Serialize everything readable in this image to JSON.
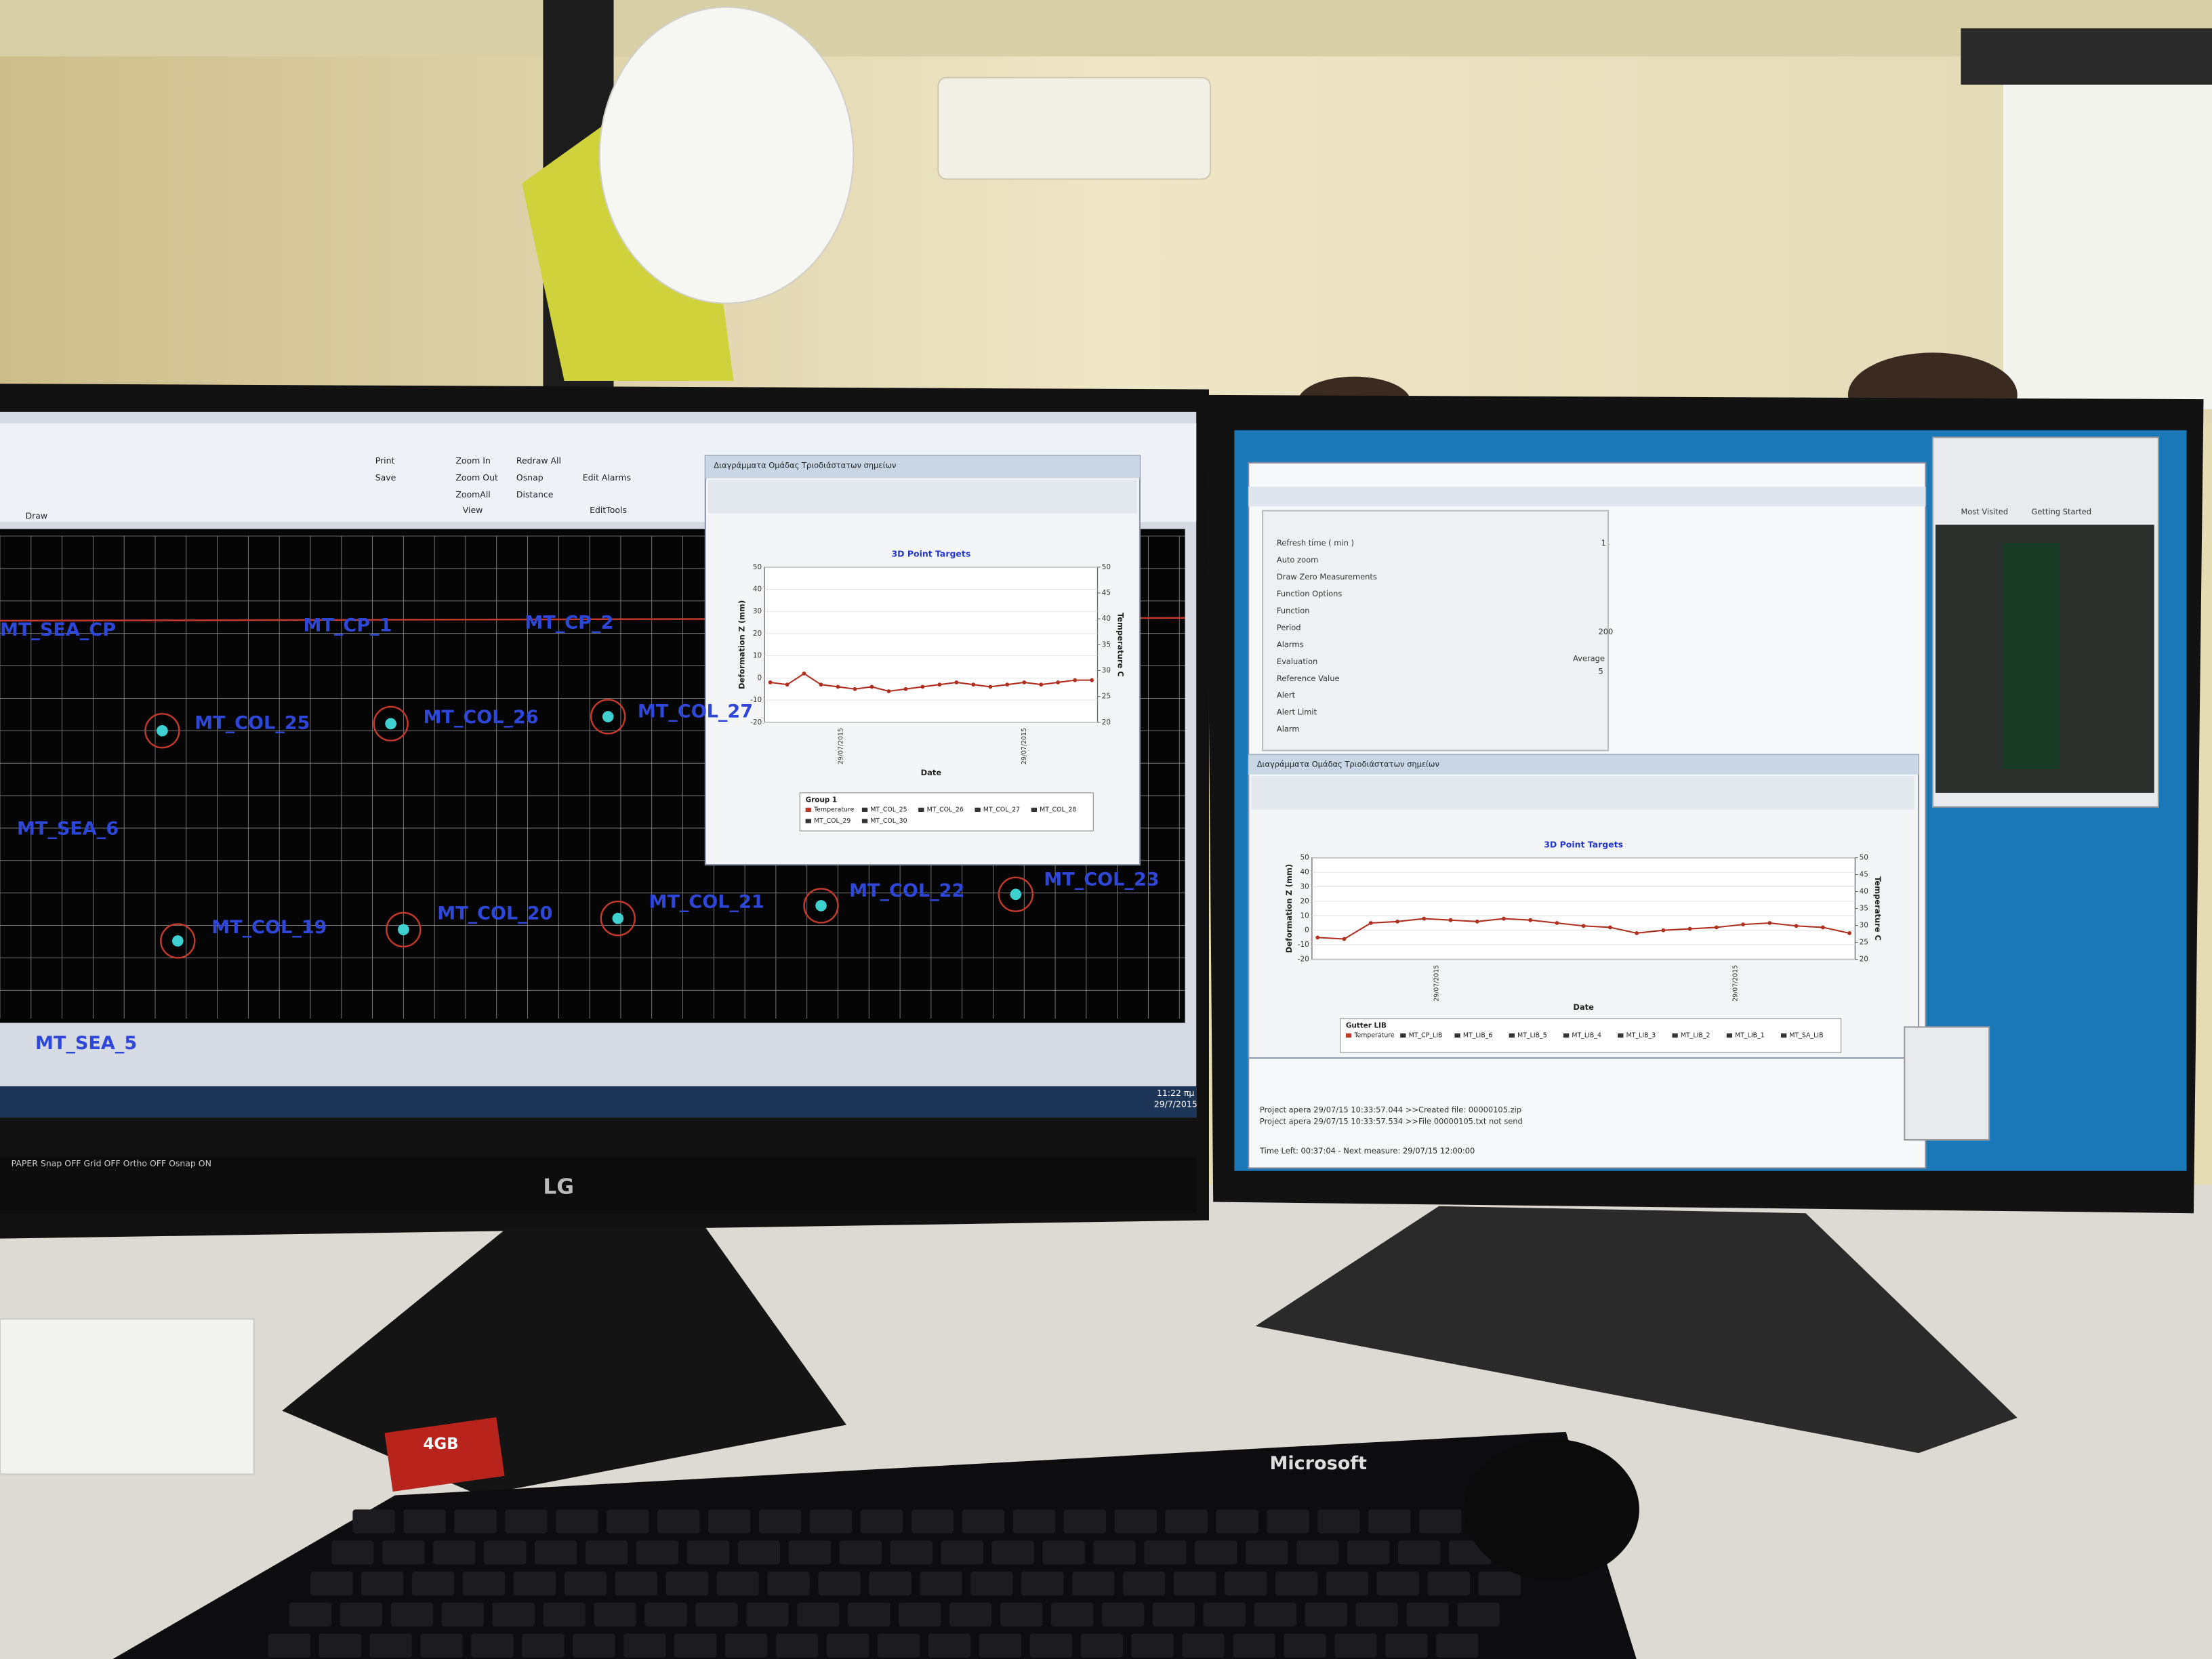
{
  "left_monitor": {
    "brand": "LG",
    "ribbon": [
      "Print",
      "Save",
      "Zoom In",
      "Zoom Out",
      "ZoomAll",
      "Redraw All",
      "Osnap",
      "Distance",
      "Edit Alarms",
      "Draw",
      "View",
      "EditTools"
    ],
    "cad_labels": [
      "MT_SEA_CP",
      "MT_CP_1",
      "MT_CP_2",
      "MT_COL_25",
      "MT_COL_26",
      "MT_COL_27",
      "MT_SEA_6",
      "MT_COL_19",
      "MT_COL_20",
      "MT_COL_21",
      "MT_COL_22",
      "MT_COL_23",
      "MT_SEA_5"
    ],
    "status_bar": "PAPER  Snap OFF  Grid OFF  Ortho OFF  Osnap ON",
    "clock_time": "11:22 πμ",
    "clock_date": "29/7/2015",
    "chart": {
      "type": "line",
      "window_title": "Διαγράμματα Ομάδας Τριοδιάστατων σημείων",
      "title": "3D Point Targets",
      "y_label": "Deformation Z (mm)",
      "y2_label": "Temperature C",
      "x_label": "Date",
      "xtick_labels": [
        "29/07/2015",
        "29/07/2015"
      ],
      "ylim": [
        -20,
        50
      ],
      "yticks": [
        50,
        40,
        30,
        20,
        10,
        0,
        -10,
        -20
      ],
      "y2lim": [
        20,
        50
      ],
      "y2ticks": [
        50,
        45,
        40,
        35,
        30,
        25,
        20
      ],
      "legend_title": "Group 1",
      "legend_entries": [
        "Temperature",
        "MT_COL_25",
        "MT_COL_26",
        "MT_COL_27",
        "MT_COL_28",
        "MT_COL_29",
        "MT_COL_30"
      ],
      "series": [
        {
          "name": "MT_COL_25",
          "color": "#b03020",
          "values": [
            -2,
            -3,
            2,
            -3,
            -4,
            -5,
            -4,
            -6,
            -5,
            -4,
            -3,
            -2,
            -3,
            -4,
            -3,
            -2,
            -3,
            -2,
            -1,
            -1
          ]
        }
      ]
    }
  },
  "right_monitor": {
    "log_lines": [
      "Project apera 29/07/15 10:33:57.044 >>Created file: 00000105.zip",
      "Project apera 29/07/15 10:33:57.534 >>File 00000105.txt not send"
    ],
    "status": "Time Left: 00:37:04 - Next measure: 29/07/15 12:00:00",
    "settings": [
      "Refresh time ( min )",
      "Auto zoom",
      "Draw Zero Measurements",
      "Function Options",
      "Function",
      "Period",
      "Alarms",
      "Evaluation",
      "Reference Value",
      "Alert",
      "Alert Limit",
      "Alarm"
    ],
    "settings_values": [
      "1",
      "200",
      "Average",
      "5"
    ],
    "browser_tabs": [
      "Most Visited",
      "Getting Started"
    ],
    "chart": {
      "type": "line",
      "window_title": "Διαγράμματα Ομάδας Τριοδιάστατων σημείων",
      "title": "3D Point Targets",
      "y_label": "Deformation Z (mm)",
      "y2_label": "Temperature C",
      "x_label": "Date",
      "xtick_labels": [
        "29/07/2015",
        "29/07/2015"
      ],
      "ylim": [
        -20,
        50
      ],
      "yticks": [
        50,
        40,
        30,
        20,
        10,
        0,
        -10,
        -20
      ],
      "y2lim": [
        20,
        50
      ],
      "y2ticks": [
        50,
        45,
        40,
        35,
        30,
        25,
        20
      ],
      "legend_title": "Gutter LIB",
      "legend_entries": [
        "Temperature",
        "MT_CP_LIB",
        "MT_LIB_6",
        "MT_LIB_5",
        "MT_LIB_4",
        "MT_LIB_3",
        "MT_LIB_2",
        "MT_LIB_1",
        "MT_SA_LIB"
      ],
      "series": [
        {
          "name": "MT_LIB_6",
          "color": "#b03020",
          "values": [
            -5,
            -6,
            5,
            6,
            8,
            7,
            6,
            8,
            7,
            5,
            3,
            2,
            -2,
            0,
            1,
            2,
            4,
            5,
            3,
            2,
            -2
          ]
        }
      ]
    }
  },
  "keyboard_brand": "Microsoft",
  "sd_card": "4GB"
}
